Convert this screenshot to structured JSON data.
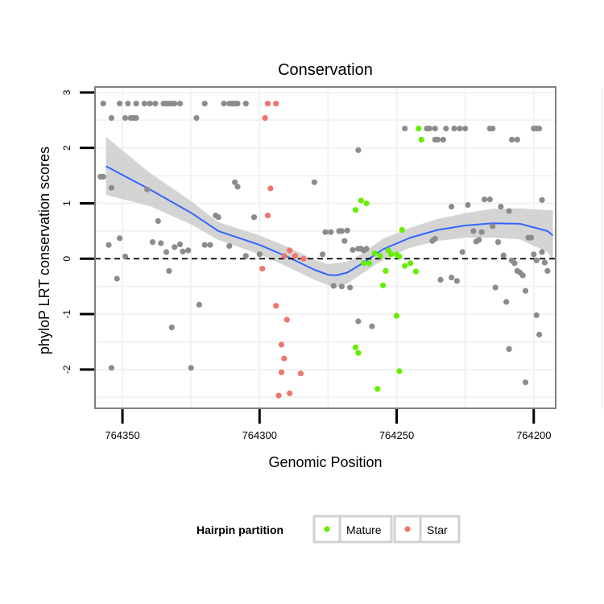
{
  "chart_data": {
    "type": "scatter",
    "title": "Conservation",
    "xlabel": "Genomic Position",
    "ylabel": "phyloP LRT conservation scores",
    "x_reversed": true,
    "xlim": [
      764360,
      764192
    ],
    "ylim": [
      -2.7,
      3.1
    ],
    "x_ticks": [
      764350,
      764300,
      764250,
      764200
    ],
    "x_tick_labels": [
      "764350",
      "764300",
      "764250",
      "764200"
    ],
    "y_ticks": [
      -2,
      -1,
      0,
      1,
      2,
      3
    ],
    "y_tick_labels": [
      "-2",
      "-1",
      "0",
      "1",
      "2",
      "3"
    ],
    "grid": true,
    "reference_line": {
      "y": 0,
      "style": "dashed",
      "color": "#000000"
    },
    "legend": {
      "title": "Hairpin partition",
      "position": "bottom",
      "entries": [
        {
          "label": "Mature",
          "color": "#66ee00"
        },
        {
          "label": "Star",
          "color": "#f0766c"
        }
      ]
    },
    "colors": {
      "other": "#8c8c8c",
      "mature": "#66ee00",
      "star": "#f0766c",
      "smooth_line": "#3366ff",
      "confidence_band": "#cccccc",
      "panel_border": "#7f7f7f",
      "grid": "#f2f2f2"
    },
    "series": [
      {
        "key": "other",
        "points": [
          [
            764357,
            2.8
          ],
          [
            764351,
            2.8
          ],
          [
            764348,
            2.8
          ],
          [
            764345,
            2.8
          ],
          [
            764342,
            2.8
          ],
          [
            764340,
            2.8
          ],
          [
            764338,
            2.8
          ],
          [
            764335,
            2.8
          ],
          [
            764334,
            2.8
          ],
          [
            764333,
            2.8
          ],
          [
            764332,
            2.8
          ],
          [
            764331,
            2.8
          ],
          [
            764329,
            2.8
          ],
          [
            764320,
            2.8
          ],
          [
            764313,
            2.8
          ],
          [
            764311,
            2.8
          ],
          [
            764310,
            2.8
          ],
          [
            764309,
            2.8
          ],
          [
            764308,
            2.8
          ],
          [
            764305,
            2.8
          ],
          [
            764354,
            2.54
          ],
          [
            764349,
            2.54
          ],
          [
            764347,
            2.54
          ],
          [
            764346,
            2.54
          ],
          [
            764345,
            2.54
          ],
          [
            764323,
            2.54
          ],
          [
            764358,
            1.48
          ],
          [
            764357,
            1.48
          ],
          [
            764354,
            1.28
          ],
          [
            764341,
            1.25
          ],
          [
            764337,
            0.68
          ],
          [
            764339,
            0.3
          ],
          [
            764336,
            0.28
          ],
          [
            764355,
            0.25
          ],
          [
            764352,
            -0.36
          ],
          [
            764351,
            0.37
          ],
          [
            764349,
            0.04
          ],
          [
            764334,
            0.12
          ],
          [
            764333,
            -0.22
          ],
          [
            764331,
            0.21
          ],
          [
            764329,
            0.26
          ],
          [
            764328,
            0.13
          ],
          [
            764326,
            0.15
          ],
          [
            764320,
            0.25
          ],
          [
            764318,
            0.25
          ],
          [
            764316,
            0.78
          ],
          [
            764315,
            0.75
          ],
          [
            764311,
            0.23
          ],
          [
            764309,
            1.38
          ],
          [
            764308,
            1.3
          ],
          [
            764305,
            0.05
          ],
          [
            764302,
            0.75
          ],
          [
            764300,
            0.08
          ],
          [
            764322,
            -0.83
          ],
          [
            764332,
            -1.24
          ],
          [
            764325,
            -1.97
          ],
          [
            764354,
            -1.97
          ],
          [
            764280,
            1.38
          ],
          [
            764277,
            0.08
          ],
          [
            764276,
            0.48
          ],
          [
            764274,
            0.48
          ],
          [
            764273,
            -0.49
          ],
          [
            764271,
            0.5
          ],
          [
            764270,
            -0.5
          ],
          [
            764270,
            0.5
          ],
          [
            764268,
            0.51
          ],
          [
            764267,
            -0.52
          ],
          [
            764266,
            0.16
          ],
          [
            764264,
            0.18
          ],
          [
            764263,
            0.18
          ],
          [
            764262,
            0.15
          ],
          [
            764261,
            0.18
          ],
          [
            764264,
            -1.13
          ],
          [
            764259,
            -1.22
          ],
          [
            764264,
            1.96
          ],
          [
            764269,
            0.32
          ],
          [
            764247,
            2.35
          ],
          [
            764239,
            2.35
          ],
          [
            764238,
            2.35
          ],
          [
            764236,
            2.35
          ],
          [
            764232,
            2.35
          ],
          [
            764229,
            2.35
          ],
          [
            764227,
            2.35
          ],
          [
            764225,
            2.35
          ],
          [
            764216,
            2.35
          ],
          [
            764215,
            2.35
          ],
          [
            764200,
            2.35
          ],
          [
            764199,
            2.35
          ],
          [
            764198,
            2.35
          ],
          [
            764236,
            2.15
          ],
          [
            764235,
            2.15
          ],
          [
            764233,
            2.15
          ],
          [
            764208,
            2.15
          ],
          [
            764206,
            2.15
          ],
          [
            764237,
            0.32
          ],
          [
            764234,
            -0.38
          ],
          [
            764236,
            0.36
          ],
          [
            764230,
            0.94
          ],
          [
            764226,
            0.12
          ],
          [
            764230,
            -0.34
          ],
          [
            764228,
            -0.4
          ],
          [
            764224,
            0.97
          ],
          [
            764221,
            0.31
          ],
          [
            764220,
            0.34
          ],
          [
            764218,
            1.07
          ],
          [
            764216,
            1.07
          ],
          [
            764219,
            0.48
          ],
          [
            764222,
            0.5
          ],
          [
            764215,
            0.59
          ],
          [
            764214,
            -0.52
          ],
          [
            764213,
            0.3
          ],
          [
            764210,
            -0.78
          ],
          [
            764209,
            0.86
          ],
          [
            764208,
            -0.03
          ],
          [
            764207,
            -0.08
          ],
          [
            764206,
            -0.22
          ],
          [
            764205,
            -0.25
          ],
          [
            764204,
            -0.3
          ],
          [
            764203,
            -0.58
          ],
          [
            764211,
            0.06
          ],
          [
            764212,
            0.94
          ],
          [
            764202,
            0.38
          ],
          [
            764201,
            0.38
          ],
          [
            764200,
            0.08
          ],
          [
            764199,
            -0.03
          ],
          [
            764197,
            0.12
          ],
          [
            764196,
            -0.07
          ],
          [
            764195,
            -0.22
          ],
          [
            764197,
            1.06
          ],
          [
            764199,
            -1.02
          ],
          [
            764198,
            -1.37
          ],
          [
            764203,
            -2.23
          ],
          [
            764209,
            -1.63
          ]
        ]
      },
      {
        "key": "mature",
        "points": [
          [
            764242,
            2.35
          ],
          [
            764241,
            2.15
          ],
          [
            764265,
            0.88
          ],
          [
            764263,
            1.05
          ],
          [
            764261,
            1.0
          ],
          [
            764258,
            0.1
          ],
          [
            764256,
            0.05
          ],
          [
            764253,
            0.15
          ],
          [
            764252,
            0.08
          ],
          [
            764250,
            0.08
          ],
          [
            764249,
            0.04
          ],
          [
            764248,
            0.52
          ],
          [
            764247,
            -0.13
          ],
          [
            764245,
            -0.08
          ],
          [
            764243,
            -0.23
          ],
          [
            764260,
            -0.08
          ],
          [
            764262,
            -0.08
          ],
          [
            764255,
            -0.48
          ],
          [
            764254,
            -0.22
          ],
          [
            764250,
            -1.03
          ],
          [
            764265,
            -1.6
          ],
          [
            764264,
            -1.7
          ],
          [
            764257,
            -2.35
          ],
          [
            764249,
            -2.03
          ]
        ]
      },
      {
        "key": "star",
        "points": [
          [
            764297,
            2.8
          ],
          [
            764294,
            2.8
          ],
          [
            764298,
            2.54
          ],
          [
            764296,
            1.27
          ],
          [
            764297,
            0.78
          ],
          [
            764299,
            -0.18
          ],
          [
            764291,
            0.05
          ],
          [
            764289,
            0.15
          ],
          [
            764287,
            0.05
          ],
          [
            764284,
            0.0
          ],
          [
            764294,
            -0.85
          ],
          [
            764290,
            -1.1
          ],
          [
            764292,
            -1.55
          ],
          [
            764291,
            -1.8
          ],
          [
            764292,
            -2.05
          ],
          [
            764285,
            -2.07
          ],
          [
            764293,
            -2.47
          ],
          [
            764289,
            -2.43
          ]
        ]
      }
    ],
    "smooth_fit": {
      "x": [
        764356,
        764340,
        764325,
        764315,
        764300,
        764290,
        764280,
        764275,
        764272,
        764268,
        764263,
        764255,
        764245,
        764235,
        764225,
        764215,
        764205,
        764195,
        764193
      ],
      "y": [
        1.67,
        1.25,
        0.83,
        0.5,
        0.25,
        0.04,
        -0.2,
        -0.29,
        -0.3,
        -0.25,
        -0.1,
        0.17,
        0.38,
        0.52,
        0.6,
        0.64,
        0.63,
        0.5,
        0.42
      ],
      "lower": [
        1.15,
        0.95,
        0.62,
        0.34,
        0.08,
        -0.14,
        -0.38,
        -0.48,
        -0.52,
        -0.45,
        -0.28,
        -0.02,
        0.2,
        0.32,
        0.38,
        0.38,
        0.35,
        0.12,
        -0.05
      ],
      "upper": [
        2.2,
        1.55,
        1.04,
        0.66,
        0.42,
        0.22,
        -0.02,
        -0.1,
        -0.08,
        -0.05,
        0.08,
        0.36,
        0.56,
        0.72,
        0.82,
        0.9,
        0.91,
        0.88,
        0.88
      ]
    }
  }
}
